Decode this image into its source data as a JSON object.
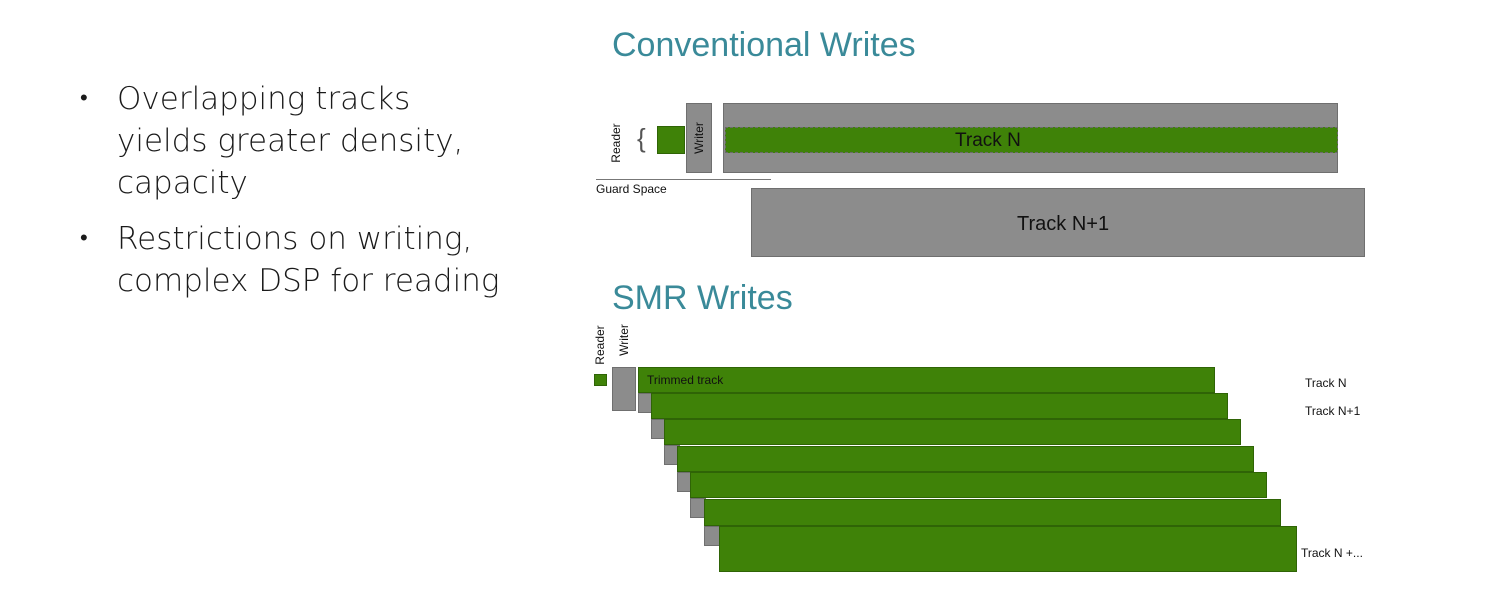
{
  "bullets": [
    {
      "text": "Overlapping tracks yields greater density, capacity"
    },
    {
      "text": "Restrictions on writing, complex DSP for reading"
    }
  ],
  "conventional": {
    "title": "Conventional Writes",
    "reader_label": "Reader",
    "writer_label": "Writer",
    "brace": "{",
    "guard_label": "Guard Space",
    "track_n_label": "Track N",
    "track_n1_label": "Track N+1"
  },
  "smr": {
    "title": "SMR Writes",
    "reader_label": "Reader",
    "writer_label": "Writer",
    "trimmed_label": "Trimmed track",
    "track_n_label": "Track N",
    "track_n1_label": "Track N+1",
    "track_last_label": "Track N +..."
  },
  "colors": {
    "green": "#3f8208",
    "gray": "#8c8c8c",
    "heading": "#3a8a99"
  }
}
